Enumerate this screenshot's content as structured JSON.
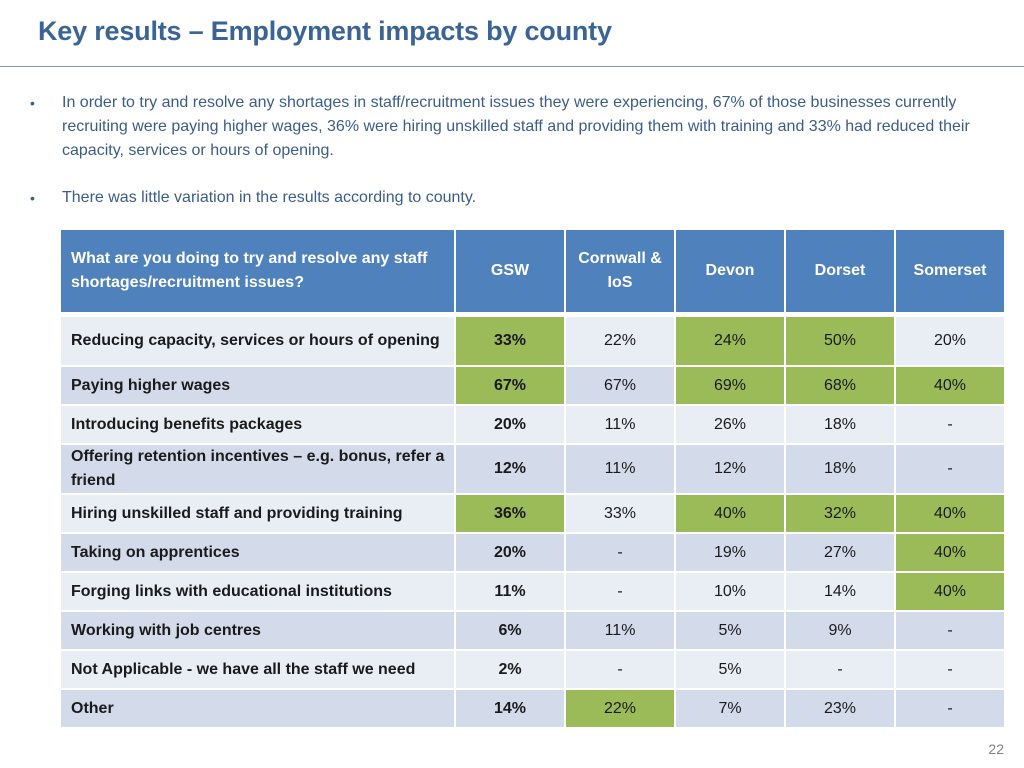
{
  "slide": {
    "title": "Key results – Employment impacts by county",
    "page_number": "22"
  },
  "bullets": [
    "In order to try and resolve any shortages in staff/recruitment issues they were experiencing, 67% of those businesses currently recruiting were paying higher wages, 36% were hiring unskilled staff and providing them with training and 33% had reduced their capacity, services or hours of opening.",
    "There was little variation in the results according to county."
  ],
  "bullet_glyph": "•",
  "table": {
    "headers": [
      "What are you doing to try and resolve any staff shortages/recruitment issues?",
      "GSW",
      "Cornwall & IoS",
      "Devon",
      "Dorset",
      "Somerset"
    ],
    "rows": [
      {
        "label": "Reducing capacity, services or hours of opening",
        "values": [
          "33%",
          "22%",
          "24%",
          "50%",
          "20%"
        ],
        "highlight": [
          true,
          false,
          true,
          true,
          false
        ]
      },
      {
        "label": "Paying higher wages",
        "values": [
          "67%",
          "67%",
          "69%",
          "68%",
          "40%"
        ],
        "highlight": [
          true,
          false,
          true,
          true,
          true
        ]
      },
      {
        "label": "Introducing benefits packages",
        "values": [
          "20%",
          "11%",
          "26%",
          "18%",
          "-"
        ],
        "highlight": [
          false,
          false,
          false,
          false,
          false
        ]
      },
      {
        "label": "Offering retention incentives – e.g. bonus, refer a friend",
        "values": [
          "12%",
          "11%",
          "12%",
          "18%",
          "-"
        ],
        "highlight": [
          false,
          false,
          false,
          false,
          false
        ]
      },
      {
        "label": "Hiring unskilled staff and providing training",
        "values": [
          "36%",
          "33%",
          "40%",
          "32%",
          "40%"
        ],
        "highlight": [
          true,
          false,
          true,
          true,
          true
        ]
      },
      {
        "label": "Taking on apprentices",
        "values": [
          "20%",
          "-",
          "19%",
          "27%",
          "40%"
        ],
        "highlight": [
          false,
          false,
          false,
          false,
          true
        ]
      },
      {
        "label": "Forging links with educational institutions",
        "values": [
          "11%",
          "-",
          "10%",
          "14%",
          "40%"
        ],
        "highlight": [
          false,
          false,
          false,
          false,
          true
        ]
      },
      {
        "label": "Working with job centres",
        "values": [
          "6%",
          "11%",
          "5%",
          "9%",
          "-"
        ],
        "highlight": [
          false,
          false,
          false,
          false,
          false
        ]
      },
      {
        "label": "Not Applicable - we have all the staff we need",
        "values": [
          "2%",
          "-",
          "5%",
          "-",
          "-"
        ],
        "highlight": [
          false,
          false,
          false,
          false,
          false
        ]
      },
      {
        "label": "Other",
        "values": [
          "14%",
          "22%",
          "7%",
          "23%",
          "-"
        ],
        "highlight": [
          false,
          true,
          false,
          false,
          false
        ]
      }
    ]
  },
  "colors": {
    "title": "#3a6496",
    "header_bg": "#4f81bd",
    "highlight": "#9bbb59",
    "row_light": "#e9edf4",
    "row_dark": "#d3dbeb"
  }
}
